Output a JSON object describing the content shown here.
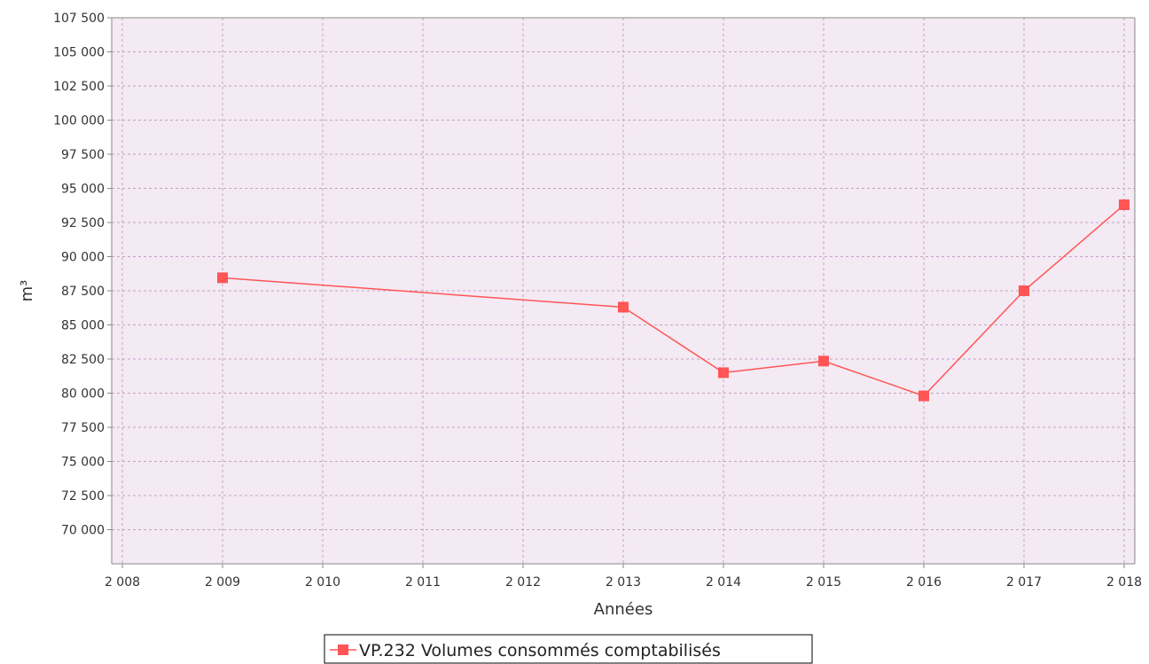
{
  "chart_data": {
    "type": "line",
    "xlabel": "Années",
    "ylabel": "m³",
    "xlim": [
      2008,
      2018
    ],
    "ylim": [
      67500,
      107500
    ],
    "x_ticks": [
      2008,
      2009,
      2010,
      2011,
      2012,
      2013,
      2014,
      2015,
      2016,
      2017,
      2018
    ],
    "x_tick_labels": [
      "2 008",
      "2 009",
      "2 010",
      "2 011",
      "2 012",
      "2 013",
      "2 014",
      "2 015",
      "2 016",
      "2 017",
      "2 018"
    ],
    "y_ticks": [
      70000,
      72500,
      75000,
      77500,
      80000,
      82500,
      85000,
      87500,
      90000,
      92500,
      95000,
      97500,
      100000,
      102500,
      105000,
      107500
    ],
    "y_tick_labels": [
      "70 000",
      "72 500",
      "75 000",
      "77 500",
      "80 000",
      "82 500",
      "85 000",
      "87 500",
      "90 000",
      "92 500",
      "95 000",
      "97 500",
      "100 000",
      "102 500",
      "105 000",
      "107 500"
    ],
    "grid": true,
    "legend_position": "bottom-center",
    "series": [
      {
        "name": "VP.232 Volumes consommés comptabilisés",
        "color": "#ff5555",
        "marker": "square",
        "x": [
          2009,
          2013,
          2014,
          2015,
          2016,
          2017,
          2018
        ],
        "y": [
          88450,
          86300,
          81500,
          82350,
          79800,
          87500,
          93800
        ]
      }
    ]
  },
  "colors": {
    "plot_background": "#f3eaf3",
    "grid": "#c8a0c8",
    "axis": "#888888"
  }
}
